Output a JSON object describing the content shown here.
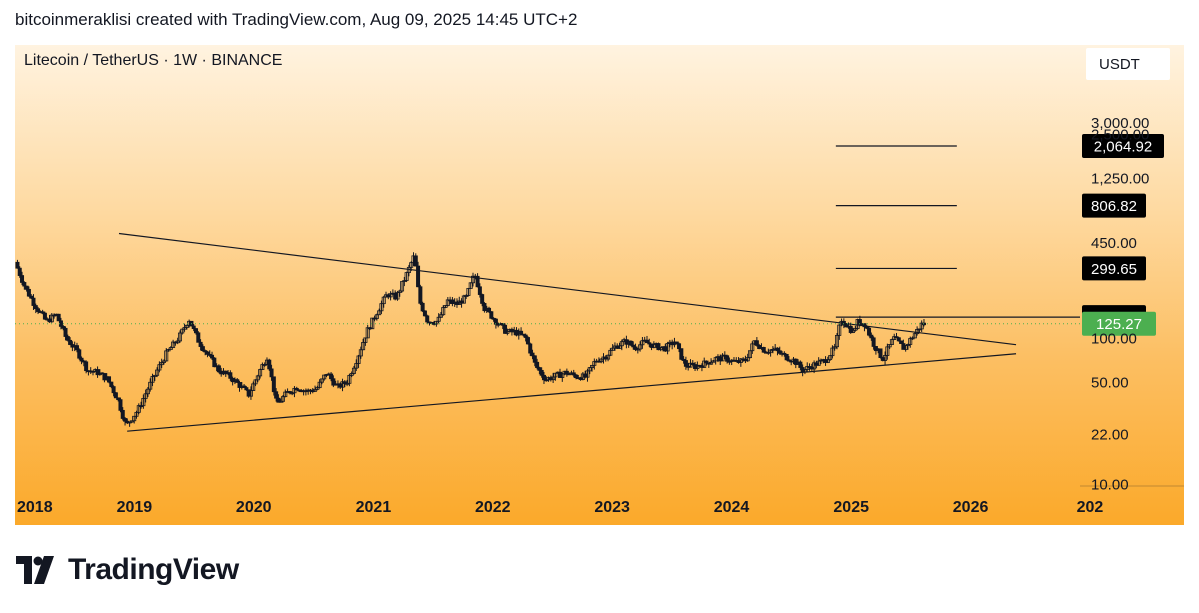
{
  "header": {
    "attribution": "bitcoinmeraklisi created with TradingView.com, Aug 09, 2025 14:45 UTC+2"
  },
  "chart_data": {
    "type": "candlestick",
    "symbol_title": "Litecoin / TetherUS · 1W · BINANCE",
    "currency": "USDT",
    "yscale": "log",
    "ylim": [
      10,
      3000
    ],
    "x_range": [
      "2018-01",
      "2026-11"
    ],
    "x_ticks": [
      "2018",
      "2019",
      "2020",
      "2021",
      "2022",
      "2023",
      "2024",
      "2025",
      "2026",
      "202"
    ],
    "y_ticks": [
      "3,000.00",
      "2,500.00",
      "1,250.00",
      "450.00",
      "100.00",
      "50.00",
      "22.00",
      "10.00"
    ],
    "y_tick_values": [
      3000,
      2500,
      1250,
      450,
      100,
      50,
      22,
      10
    ],
    "current_price": {
      "label": "125.27",
      "value": 125.27,
      "color": "#4caf50"
    },
    "levels": [
      {
        "label": "2,064.92",
        "value": 2064.92
      },
      {
        "label": "806.82",
        "value": 806.82
      },
      {
        "label": "299.65",
        "value": 299.65
      },
      {
        "label": "139.00",
        "value": 139.0
      }
    ],
    "trendlines": [
      {
        "name": "upper",
        "from": [
          "2018-11-15",
          520
        ],
        "to": [
          "2026-05-20",
          90
        ]
      },
      {
        "name": "lower",
        "from": [
          "2018-12-10",
          23
        ],
        "to": [
          "2026-05-20",
          78
        ]
      }
    ],
    "price_path": [
      [
        "2018-01-05",
        330
      ],
      [
        "2018-02-05",
        220
      ],
      [
        "2018-03-05",
        170
      ],
      [
        "2018-04-10",
        130
      ],
      [
        "2018-05-10",
        145
      ],
      [
        "2018-06-10",
        100
      ],
      [
        "2018-07-15",
        80
      ],
      [
        "2018-08-15",
        60
      ],
      [
        "2018-09-15",
        58
      ],
      [
        "2018-10-15",
        52
      ],
      [
        "2018-11-15",
        38
      ],
      [
        "2018-12-10",
        25
      ],
      [
        "2019-01-15",
        32
      ],
      [
        "2019-02-15",
        45
      ],
      [
        "2019-03-15",
        60
      ],
      [
        "2019-04-15",
        80
      ],
      [
        "2019-05-20",
        100
      ],
      [
        "2019-06-20",
        135
      ],
      [
        "2019-07-20",
        95
      ],
      [
        "2019-08-20",
        75
      ],
      [
        "2019-09-20",
        60
      ],
      [
        "2019-10-20",
        55
      ],
      [
        "2019-11-20",
        48
      ],
      [
        "2019-12-20",
        41
      ],
      [
        "2020-01-20",
        58
      ],
      [
        "2020-02-15",
        75
      ],
      [
        "2020-03-15",
        35
      ],
      [
        "2020-04-15",
        42
      ],
      [
        "2020-05-15",
        46
      ],
      [
        "2020-06-15",
        43
      ],
      [
        "2020-07-15",
        45
      ],
      [
        "2020-08-15",
        58
      ],
      [
        "2020-09-15",
        46
      ],
      [
        "2020-10-15",
        50
      ],
      [
        "2020-11-15",
        72
      ],
      [
        "2020-12-15",
        110
      ],
      [
        "2021-01-15",
        150
      ],
      [
        "2021-02-15",
        200
      ],
      [
        "2021-03-15",
        190
      ],
      [
        "2021-04-15",
        270
      ],
      [
        "2021-05-10",
        370
      ],
      [
        "2021-05-25",
        180
      ],
      [
        "2021-06-20",
        130
      ],
      [
        "2021-07-20",
        130
      ],
      [
        "2021-08-20",
        180
      ],
      [
        "2021-09-15",
        170
      ],
      [
        "2021-10-15",
        190
      ],
      [
        "2021-11-10",
        275
      ],
      [
        "2021-12-10",
        160
      ],
      [
        "2022-01-15",
        130
      ],
      [
        "2022-02-15",
        110
      ],
      [
        "2022-03-15",
        110
      ],
      [
        "2022-04-15",
        100
      ],
      [
        "2022-05-15",
        65
      ],
      [
        "2022-06-15",
        52
      ],
      [
        "2022-07-15",
        55
      ],
      [
        "2022-08-15",
        58
      ],
      [
        "2022-09-15",
        55
      ],
      [
        "2022-10-15",
        54
      ],
      [
        "2022-11-15",
        70
      ],
      [
        "2022-12-15",
        75
      ],
      [
        "2023-01-15",
        88
      ],
      [
        "2023-02-15",
        95
      ],
      [
        "2023-03-15",
        86
      ],
      [
        "2023-04-15",
        94
      ],
      [
        "2023-05-15",
        88
      ],
      [
        "2023-06-15",
        85
      ],
      [
        "2023-07-15",
        95
      ],
      [
        "2023-08-15",
        65
      ],
      [
        "2023-09-15",
        64
      ],
      [
        "2023-10-15",
        67
      ],
      [
        "2023-11-15",
        72
      ],
      [
        "2023-12-15",
        73
      ],
      [
        "2024-01-15",
        68
      ],
      [
        "2024-02-15",
        70
      ],
      [
        "2024-03-15",
        95
      ],
      [
        "2024-04-15",
        82
      ],
      [
        "2024-05-15",
        83
      ],
      [
        "2024-06-15",
        75
      ],
      [
        "2024-07-15",
        70
      ],
      [
        "2024-08-10",
        60
      ],
      [
        "2024-09-15",
        66
      ],
      [
        "2024-10-15",
        70
      ],
      [
        "2024-11-15",
        85
      ],
      [
        "2024-12-05",
        135
      ],
      [
        "2025-01-10",
        110
      ],
      [
        "2025-01-25",
        130
      ],
      [
        "2025-02-15",
        125
      ],
      [
        "2025-03-15",
        90
      ],
      [
        "2025-04-10",
        72
      ],
      [
        "2025-05-15",
        100
      ],
      [
        "2025-06-15",
        85
      ],
      [
        "2025-07-15",
        105
      ],
      [
        "2025-08-09",
        125
      ]
    ]
  },
  "footer": {
    "brand": "TradingView"
  },
  "colors": {
    "candle_up": "#131722",
    "candle_down": "#131722",
    "current_price_bg": "#4caf50",
    "level_bg": "#000000",
    "text": "#131722"
  }
}
